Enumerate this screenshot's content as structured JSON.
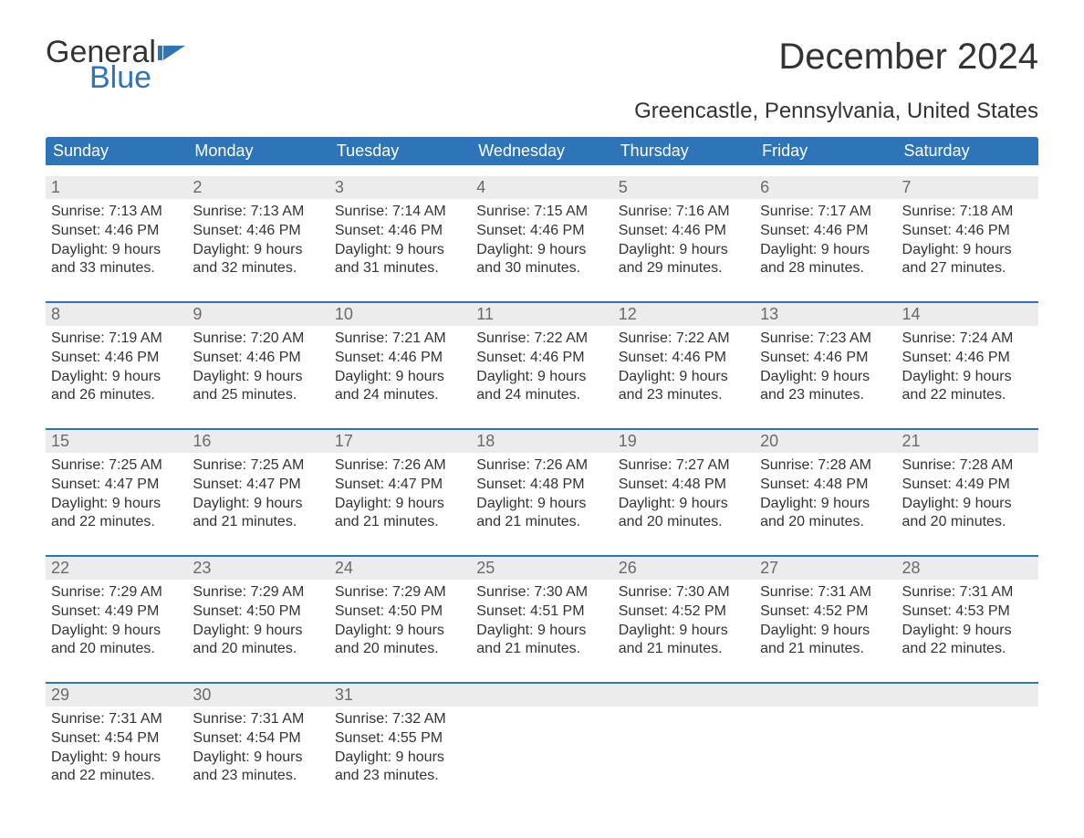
{
  "logo": {
    "line1": "General",
    "line2": "Blue",
    "flag_color": "#2d74b8",
    "text_dark": "#333333"
  },
  "title": "December 2024",
  "subtitle": "Greencastle, Pennsylvania, United States",
  "colors": {
    "header_bg": "#2d74b8",
    "header_text": "#ffffff",
    "daynum_bg": "#ececec",
    "daynum_text": "#6a6a6a",
    "body_text": "#333333",
    "page_bg": "#ffffff"
  },
  "weekdays": [
    "Sunday",
    "Monday",
    "Tuesday",
    "Wednesday",
    "Thursday",
    "Friday",
    "Saturday"
  ],
  "weeks": [
    [
      {
        "n": "1",
        "sr": "Sunrise: 7:13 AM",
        "ss": "Sunset: 4:46 PM",
        "d1": "Daylight: 9 hours",
        "d2": "and 33 minutes."
      },
      {
        "n": "2",
        "sr": "Sunrise: 7:13 AM",
        "ss": "Sunset: 4:46 PM",
        "d1": "Daylight: 9 hours",
        "d2": "and 32 minutes."
      },
      {
        "n": "3",
        "sr": "Sunrise: 7:14 AM",
        "ss": "Sunset: 4:46 PM",
        "d1": "Daylight: 9 hours",
        "d2": "and 31 minutes."
      },
      {
        "n": "4",
        "sr": "Sunrise: 7:15 AM",
        "ss": "Sunset: 4:46 PM",
        "d1": "Daylight: 9 hours",
        "d2": "and 30 minutes."
      },
      {
        "n": "5",
        "sr": "Sunrise: 7:16 AM",
        "ss": "Sunset: 4:46 PM",
        "d1": "Daylight: 9 hours",
        "d2": "and 29 minutes."
      },
      {
        "n": "6",
        "sr": "Sunrise: 7:17 AM",
        "ss": "Sunset: 4:46 PM",
        "d1": "Daylight: 9 hours",
        "d2": "and 28 minutes."
      },
      {
        "n": "7",
        "sr": "Sunrise: 7:18 AM",
        "ss": "Sunset: 4:46 PM",
        "d1": "Daylight: 9 hours",
        "d2": "and 27 minutes."
      }
    ],
    [
      {
        "n": "8",
        "sr": "Sunrise: 7:19 AM",
        "ss": "Sunset: 4:46 PM",
        "d1": "Daylight: 9 hours",
        "d2": "and 26 minutes."
      },
      {
        "n": "9",
        "sr": "Sunrise: 7:20 AM",
        "ss": "Sunset: 4:46 PM",
        "d1": "Daylight: 9 hours",
        "d2": "and 25 minutes."
      },
      {
        "n": "10",
        "sr": "Sunrise: 7:21 AM",
        "ss": "Sunset: 4:46 PM",
        "d1": "Daylight: 9 hours",
        "d2": "and 24 minutes."
      },
      {
        "n": "11",
        "sr": "Sunrise: 7:22 AM",
        "ss": "Sunset: 4:46 PM",
        "d1": "Daylight: 9 hours",
        "d2": "and 24 minutes."
      },
      {
        "n": "12",
        "sr": "Sunrise: 7:22 AM",
        "ss": "Sunset: 4:46 PM",
        "d1": "Daylight: 9 hours",
        "d2": "and 23 minutes."
      },
      {
        "n": "13",
        "sr": "Sunrise: 7:23 AM",
        "ss": "Sunset: 4:46 PM",
        "d1": "Daylight: 9 hours",
        "d2": "and 23 minutes."
      },
      {
        "n": "14",
        "sr": "Sunrise: 7:24 AM",
        "ss": "Sunset: 4:46 PM",
        "d1": "Daylight: 9 hours",
        "d2": "and 22 minutes."
      }
    ],
    [
      {
        "n": "15",
        "sr": "Sunrise: 7:25 AM",
        "ss": "Sunset: 4:47 PM",
        "d1": "Daylight: 9 hours",
        "d2": "and 22 minutes."
      },
      {
        "n": "16",
        "sr": "Sunrise: 7:25 AM",
        "ss": "Sunset: 4:47 PM",
        "d1": "Daylight: 9 hours",
        "d2": "and 21 minutes."
      },
      {
        "n": "17",
        "sr": "Sunrise: 7:26 AM",
        "ss": "Sunset: 4:47 PM",
        "d1": "Daylight: 9 hours",
        "d2": "and 21 minutes."
      },
      {
        "n": "18",
        "sr": "Sunrise: 7:26 AM",
        "ss": "Sunset: 4:48 PM",
        "d1": "Daylight: 9 hours",
        "d2": "and 21 minutes."
      },
      {
        "n": "19",
        "sr": "Sunrise: 7:27 AM",
        "ss": "Sunset: 4:48 PM",
        "d1": "Daylight: 9 hours",
        "d2": "and 20 minutes."
      },
      {
        "n": "20",
        "sr": "Sunrise: 7:28 AM",
        "ss": "Sunset: 4:48 PM",
        "d1": "Daylight: 9 hours",
        "d2": "and 20 minutes."
      },
      {
        "n": "21",
        "sr": "Sunrise: 7:28 AM",
        "ss": "Sunset: 4:49 PM",
        "d1": "Daylight: 9 hours",
        "d2": "and 20 minutes."
      }
    ],
    [
      {
        "n": "22",
        "sr": "Sunrise: 7:29 AM",
        "ss": "Sunset: 4:49 PM",
        "d1": "Daylight: 9 hours",
        "d2": "and 20 minutes."
      },
      {
        "n": "23",
        "sr": "Sunrise: 7:29 AM",
        "ss": "Sunset: 4:50 PM",
        "d1": "Daylight: 9 hours",
        "d2": "and 20 minutes."
      },
      {
        "n": "24",
        "sr": "Sunrise: 7:29 AM",
        "ss": "Sunset: 4:50 PM",
        "d1": "Daylight: 9 hours",
        "d2": "and 20 minutes."
      },
      {
        "n": "25",
        "sr": "Sunrise: 7:30 AM",
        "ss": "Sunset: 4:51 PM",
        "d1": "Daylight: 9 hours",
        "d2": "and 21 minutes."
      },
      {
        "n": "26",
        "sr": "Sunrise: 7:30 AM",
        "ss": "Sunset: 4:52 PM",
        "d1": "Daylight: 9 hours",
        "d2": "and 21 minutes."
      },
      {
        "n": "27",
        "sr": "Sunrise: 7:31 AM",
        "ss": "Sunset: 4:52 PM",
        "d1": "Daylight: 9 hours",
        "d2": "and 21 minutes."
      },
      {
        "n": "28",
        "sr": "Sunrise: 7:31 AM",
        "ss": "Sunset: 4:53 PM",
        "d1": "Daylight: 9 hours",
        "d2": "and 22 minutes."
      }
    ],
    [
      {
        "n": "29",
        "sr": "Sunrise: 7:31 AM",
        "ss": "Sunset: 4:54 PM",
        "d1": "Daylight: 9 hours",
        "d2": "and 22 minutes."
      },
      {
        "n": "30",
        "sr": "Sunrise: 7:31 AM",
        "ss": "Sunset: 4:54 PM",
        "d1": "Daylight: 9 hours",
        "d2": "and 23 minutes."
      },
      {
        "n": "31",
        "sr": "Sunrise: 7:32 AM",
        "ss": "Sunset: 4:55 PM",
        "d1": "Daylight: 9 hours",
        "d2": "and 23 minutes."
      },
      {
        "n": "",
        "sr": "",
        "ss": "",
        "d1": "",
        "d2": ""
      },
      {
        "n": "",
        "sr": "",
        "ss": "",
        "d1": "",
        "d2": ""
      },
      {
        "n": "",
        "sr": "",
        "ss": "",
        "d1": "",
        "d2": ""
      },
      {
        "n": "",
        "sr": "",
        "ss": "",
        "d1": "",
        "d2": ""
      }
    ]
  ]
}
